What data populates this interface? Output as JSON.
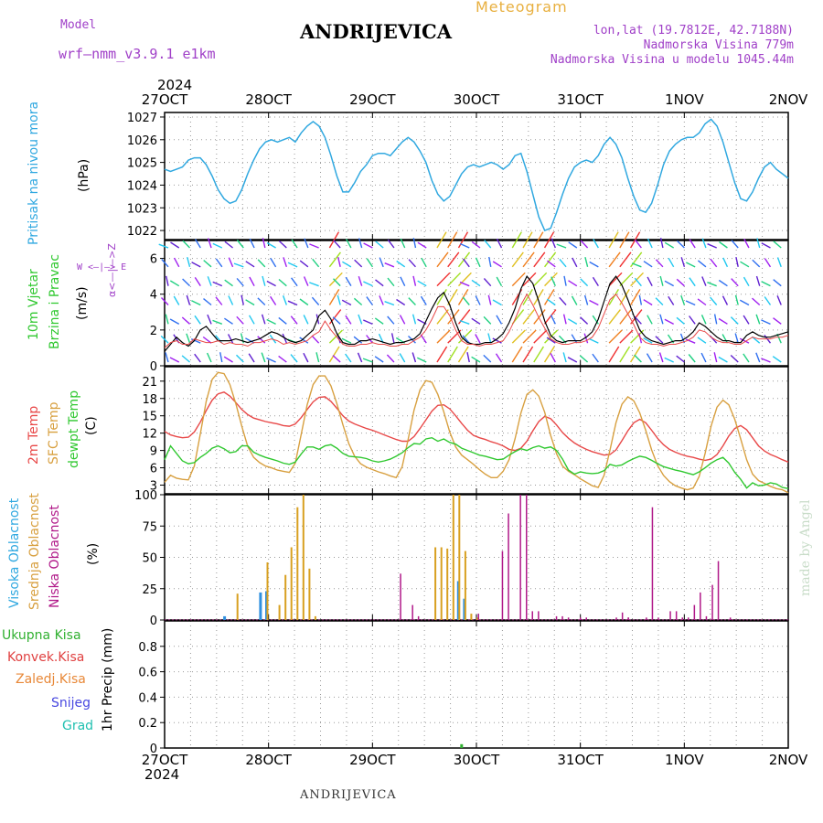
{
  "header": {
    "model_label": "Model",
    "model_name": "wrf—nmm_v3.9.1  e1km",
    "title": "ANDRIJEVICA",
    "subtitle": "Meteogram",
    "lonlat": "lon,lat (19.7812E, 42.7188N)",
    "elevation": "Nadmorska Visina 779m",
    "model_elevation": "Nadmorska Visina u modelu 1045.44m",
    "year_top": "2024",
    "year_bottom": "2024",
    "watermark": "made by Angel",
    "footer": "ANDRIJEVICA"
  },
  "panel_labels": {
    "pressure": {
      "name": "Pritisak na nivou mora",
      "unit": "(hPa)"
    },
    "wind": {
      "name1": "10m Vjetar",
      "name2": "Brzina i Pravac",
      "unit": "(m/s)",
      "compass_ns": "α<—|—>Z",
      "compass_we": "W  <—|—>  E"
    },
    "temp": {
      "name1": "2m Temp",
      "name2": "SFC Temp",
      "name3": "dewpt Temp",
      "unit": "(C)"
    },
    "cloud": {
      "name1": "Visoka Oblacnost",
      "name2": "Srednja Oblacnost",
      "name3": "Niska Oblacnost",
      "unit": "(%)"
    },
    "precip": {
      "items": [
        "Ukupna Kisa",
        "Konvek.Kisa",
        "Zaledj.Kisa",
        "Snijeg",
        "Grad"
      ],
      "unit": "1hr Precip (mm)"
    }
  },
  "colors": {
    "pressure": "#30a8e0",
    "temp2m": "#e84848",
    "sfc": "#d8a040",
    "dewpt": "#30c830",
    "cloud_high": "#3090e0",
    "cloud_mid": "#d8a020",
    "cloud_low": "#b01888",
    "precip_total": "#30b030",
    "precip_conv": "#e04040",
    "precip_frz": "#e88838",
    "precip_snow": "#4848e0",
    "precip_hail": "#20c0b0",
    "title_purple": "#a040c8"
  },
  "chart_data": [
    {
      "type": "line",
      "panel": "pressure",
      "x_labels": [
        "27OCT",
        "28OCT",
        "29OCT",
        "30OCT",
        "31OCT",
        "1NOV",
        "2NOV"
      ],
      "ylim": [
        1021.6,
        1027.2
      ],
      "yticks": [
        1022,
        1023,
        1024,
        1025,
        1026,
        1027
      ],
      "series": [
        {
          "values": [
            1024.7,
            1024.6,
            1024.7,
            1024.8,
            1025.1,
            1025.2,
            1025.2,
            1024.9,
            1024.4,
            1023.8,
            1023.4,
            1023.2,
            1023.3,
            1023.8,
            1024.5,
            1025.1,
            1025.6,
            1025.9,
            1026.0,
            1025.9,
            1026.0,
            1026.1,
            1025.9,
            1026.3,
            1026.6,
            1026.8,
            1026.6,
            1026.1,
            1025.3,
            1024.4,
            1023.7,
            1023.7,
            1024.1,
            1024.6,
            1024.9,
            1025.3,
            1025.4,
            1025.4,
            1025.3,
            1025.6,
            1025.9,
            1026.1,
            1025.9,
            1025.5,
            1025.0,
            1024.2,
            1023.6,
            1023.3,
            1023.5,
            1024.0,
            1024.5,
            1024.8,
            1024.9,
            1024.8,
            1024.9,
            1025.0,
            1024.9,
            1024.7,
            1024.9,
            1025.3,
            1025.4,
            1024.6,
            1023.6,
            1022.6,
            1022.0,
            1022.1,
            1022.8,
            1023.6,
            1024.3,
            1024.8,
            1025.0,
            1025.1,
            1025.0,
            1025.3,
            1025.8,
            1026.1,
            1025.8,
            1025.2,
            1024.3,
            1023.5,
            1022.9,
            1022.8,
            1023.2,
            1024.0,
            1024.9,
            1025.5,
            1025.8,
            1026.0,
            1026.1,
            1026.1,
            1026.3,
            1026.7,
            1026.9,
            1026.6,
            1025.9,
            1025.0,
            1024.1,
            1023.4,
            1023.3,
            1023.7,
            1024.3,
            1024.8,
            1025.0,
            1024.7,
            1024.5,
            1024.3
          ]
        }
      ]
    },
    {
      "type": "line",
      "panel": "wind",
      "ylim": [
        0,
        7
      ],
      "yticks": [
        0,
        2,
        4,
        6
      ],
      "series": [
        {
          "values": [
            0.8,
            1.2,
            1.6,
            1.3,
            1.1,
            1.4,
            2.0,
            2.2,
            1.8,
            1.4,
            1.4,
            1.4,
            1.5,
            1.4,
            1.3,
            1.4,
            1.5,
            1.7,
            1.9,
            1.8,
            1.6,
            1.4,
            1.3,
            1.4,
            1.7,
            2.0,
            2.8,
            3.1,
            2.6,
            1.8,
            1.3,
            1.2,
            1.2,
            1.4,
            1.4,
            1.5,
            1.4,
            1.3,
            1.2,
            1.3,
            1.3,
            1.4,
            1.5,
            1.8,
            2.5,
            3.2,
            3.8,
            4.1,
            3.4,
            2.4,
            1.6,
            1.3,
            1.2,
            1.2,
            1.3,
            1.3,
            1.5,
            1.8,
            2.4,
            3.2,
            4.3,
            5.0,
            4.6,
            3.6,
            2.5,
            1.7,
            1.4,
            1.3,
            1.4,
            1.4,
            1.4,
            1.6,
            1.9,
            2.6,
            3.6,
            4.6,
            5.0,
            4.5,
            3.7,
            2.8,
            2.0,
            1.6,
            1.4,
            1.3,
            1.2,
            1.3,
            1.4,
            1.4,
            1.6,
            1.9,
            2.4,
            2.2,
            1.9,
            1.6,
            1.4,
            1.4,
            1.3,
            1.3,
            1.7,
            1.9,
            1.7,
            1.6,
            1.6,
            1.7,
            1.8,
            1.9
          ]
        },
        {
          "values": [
            1.0,
            1.3,
            1.4,
            1.2,
            1.2,
            1.5,
            1.4,
            1.3,
            1.3,
            1.4,
            1.2,
            1.3,
            1.2,
            1.2,
            1.1,
            1.3,
            1.3,
            1.4,
            1.5,
            1.4,
            1.2,
            1.3,
            1.2,
            1.3,
            1.4,
            1.7,
            1.9,
            2.5,
            2.0,
            1.6,
            1.2,
            1.1,
            1.1,
            1.2,
            1.2,
            1.3,
            1.2,
            1.2,
            1.1,
            1.1,
            1.2,
            1.2,
            1.4,
            1.6,
            2.0,
            2.6,
            3.3,
            3.3,
            2.8,
            2.0,
            1.4,
            1.2,
            1.2,
            1.1,
            1.2,
            1.2,
            1.3,
            1.4,
            1.9,
            2.6,
            3.4,
            4.0,
            3.4,
            2.7,
            2.1,
            1.5,
            1.3,
            1.2,
            1.2,
            1.3,
            1.3,
            1.4,
            1.6,
            2.1,
            2.9,
            3.7,
            4.0,
            3.5,
            2.9,
            2.3,
            1.6,
            1.3,
            1.2,
            1.2,
            1.1,
            1.2,
            1.2,
            1.3,
            1.4,
            1.6,
            2.0,
            1.9,
            1.6,
            1.4,
            1.3,
            1.3,
            1.2,
            1.2,
            1.4,
            1.6,
            1.5,
            1.5,
            1.5,
            1.6,
            1.6,
            1.7
          ]
        }
      ]
    },
    {
      "type": "line",
      "panel": "temperature",
      "ylim": [
        1.5,
        23.5
      ],
      "yticks": [
        3,
        6,
        9,
        12,
        15,
        18,
        21,
        24
      ],
      "series": [
        {
          "values": [
            12.3,
            11.7,
            11.4,
            11.2,
            11.3,
            12.2,
            13.9,
            15.9,
            17.7,
            18.8,
            19.1,
            18.4,
            17.3,
            16.1,
            15.2,
            14.6,
            14.3,
            14.0,
            13.8,
            13.6,
            13.3,
            13.2,
            13.6,
            14.7,
            16.1,
            17.4,
            18.2,
            18.3,
            17.5,
            16.3,
            15.0,
            14.1,
            13.6,
            13.2,
            12.8,
            12.5,
            12.1,
            11.7,
            11.3,
            10.9,
            10.6,
            10.6,
            11.4,
            12.8,
            14.3,
            15.8,
            16.8,
            16.9,
            16.2,
            15.0,
            13.7,
            12.5,
            11.6,
            11.2,
            10.9,
            10.5,
            10.2,
            9.8,
            9.2,
            9.0,
            9.4,
            10.6,
            12.4,
            14.0,
            14.9,
            14.5,
            13.4,
            12.1,
            11.1,
            10.3,
            9.7,
            9.2,
            8.8,
            8.5,
            8.2,
            8.3,
            9.1,
            10.7,
            12.4,
            13.8,
            14.4,
            13.8,
            12.5,
            11.1,
            10.0,
            9.2,
            8.7,
            8.3,
            8.0,
            7.8,
            7.5,
            7.3,
            7.5,
            8.3,
            9.8,
            11.5,
            12.8,
            13.3,
            12.6,
            11.2,
            9.8,
            8.9,
            8.3,
            7.9,
            7.4,
            7.0
          ]
        },
        {
          "values": [
            3.5,
            4.7,
            4.2,
            4.0,
            3.9,
            6.3,
            11.8,
            17.5,
            21.3,
            22.5,
            22.3,
            20.4,
            17.1,
            13.2,
            9.7,
            7.8,
            6.9,
            6.3,
            6.0,
            5.6,
            5.4,
            5.2,
            6.8,
            11.8,
            16.9,
            20.4,
            21.9,
            21.9,
            20.2,
            17.1,
            13.5,
            10.2,
            8.0,
            6.7,
            6.1,
            5.7,
            5.3,
            5.0,
            4.6,
            4.3,
            6.2,
            10.9,
            16.0,
            19.5,
            21.1,
            20.8,
            18.7,
            15.7,
            12.2,
            9.6,
            8.2,
            7.4,
            6.6,
            5.7,
            4.9,
            4.3,
            4.3,
            5.4,
            7.4,
            11.0,
            15.5,
            18.7,
            19.5,
            18.4,
            15.6,
            11.6,
            8.4,
            6.3,
            5.4,
            4.8,
            4.1,
            3.5,
            2.9,
            2.6,
            4.7,
            9.1,
            13.8,
            17.0,
            18.3,
            17.6,
            15.5,
            12.5,
            9.1,
            6.4,
            4.7,
            3.6,
            2.9,
            2.5,
            2.2,
            2.5,
            4.5,
            8.5,
            13.2,
            16.5,
            17.7,
            16.9,
            14.4,
            11.0,
            7.4,
            4.9,
            3.8,
            3.3,
            2.8,
            2.4,
            2.2,
            1.7
          ]
        },
        {
          "values": [
            7.4,
            9.8,
            8.5,
            7.2,
            6.7,
            6.9,
            7.8,
            8.5,
            9.4,
            9.8,
            9.3,
            8.6,
            8.8,
            9.8,
            9.8,
            8.7,
            8.2,
            7.8,
            7.5,
            7.2,
            6.8,
            6.6,
            7.0,
            8.4,
            9.6,
            9.6,
            9.2,
            9.8,
            10.0,
            9.4,
            8.5,
            8.0,
            7.9,
            7.8,
            7.6,
            7.2,
            7.0,
            7.2,
            7.5,
            8.0,
            8.6,
            9.5,
            10.2,
            10.1,
            11.0,
            11.2,
            10.6,
            11.0,
            10.4,
            10.1,
            9.4,
            9.0,
            8.6,
            8.2,
            8.0,
            7.7,
            7.4,
            7.5,
            8.2,
            8.8,
            9.3,
            9.0,
            9.5,
            9.8,
            9.4,
            9.6,
            9.0,
            7.5,
            5.6,
            4.9,
            5.3,
            5.1,
            5.0,
            5.1,
            5.5,
            6.6,
            6.3,
            6.5,
            7.1,
            7.6,
            8.0,
            7.8,
            7.3,
            6.7,
            6.2,
            5.9,
            5.6,
            5.4,
            5.1,
            4.8,
            5.3,
            6.0,
            6.8,
            7.4,
            7.8,
            6.8,
            5.2,
            4.0,
            2.5,
            3.4,
            2.9,
            3.0,
            3.4,
            3.2,
            2.6,
            2.4
          ]
        }
      ]
    },
    {
      "type": "bar",
      "panel": "cloud",
      "ylim": [
        0,
        100
      ],
      "yticks": [
        0,
        25,
        50,
        75,
        100
      ],
      "series": [
        {
          "indices": [
            10,
            16,
            17,
            49,
            50
          ],
          "values": [
            3,
            22,
            23,
            31,
            17
          ]
        },
        {
          "indices": [
            12,
            17,
            19,
            20,
            21,
            22,
            23,
            24,
            25,
            45,
            46,
            47,
            48,
            49,
            50,
            51,
            52
          ],
          "values": [
            21,
            46,
            12,
            36,
            58,
            90,
            100,
            41,
            3,
            58,
            58,
            57,
            100,
            100,
            55,
            5,
            2
          ]
        },
        {
          "indices": [
            39,
            41,
            42,
            52,
            56,
            57,
            59,
            60,
            61,
            62,
            65,
            66,
            67,
            69,
            70,
            75,
            76,
            77,
            77,
            80,
            81,
            82,
            84,
            85,
            86,
            87,
            88,
            89,
            90,
            91,
            92,
            94
          ],
          "values": [
            37,
            12,
            3,
            5,
            55,
            85,
            100,
            100,
            7,
            7,
            3,
            3,
            2,
            2,
            2,
            2,
            6,
            2,
            2,
            2,
            90,
            2,
            7,
            7,
            2,
            2,
            12,
            22,
            3,
            28,
            47,
            2
          ]
        }
      ]
    },
    {
      "type": "bar",
      "panel": "precip",
      "ylim": [
        0,
        1.0
      ],
      "yticks": [
        0,
        0.2,
        0.4,
        0.6,
        0.8
      ],
      "series": [
        {
          "indices": [
            49
          ],
          "values": [
            0.03
          ]
        }
      ]
    }
  ]
}
